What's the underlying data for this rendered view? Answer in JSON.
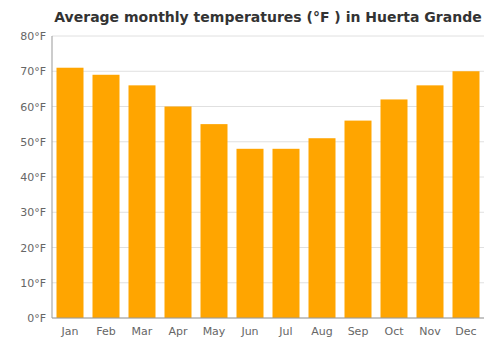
{
  "chart_data": {
    "type": "bar",
    "title": "Average monthly temperatures (°F ) in Huerta Grande",
    "categories": [
      "Jan",
      "Feb",
      "Mar",
      "Apr",
      "May",
      "Jun",
      "Jul",
      "Aug",
      "Sep",
      "Oct",
      "Nov",
      "Dec"
    ],
    "values": [
      71,
      69,
      66,
      60,
      55,
      48,
      48,
      51,
      56,
      62,
      66,
      70
    ],
    "color": "#FFA500",
    "ylim": [
      0,
      80
    ],
    "yticks": [
      {
        "value": 0,
        "label": "0°F"
      },
      {
        "value": 10,
        "label": "10°F"
      },
      {
        "value": 20,
        "label": "20°F"
      },
      {
        "value": 30,
        "label": "30°F"
      },
      {
        "value": 40,
        "label": "40°F"
      },
      {
        "value": 50,
        "label": "50°F"
      },
      {
        "value": 60,
        "label": "60°F"
      },
      {
        "value": 70,
        "label": "70°F"
      },
      {
        "value": 80,
        "label": "80°F"
      }
    ],
    "grid": true
  }
}
